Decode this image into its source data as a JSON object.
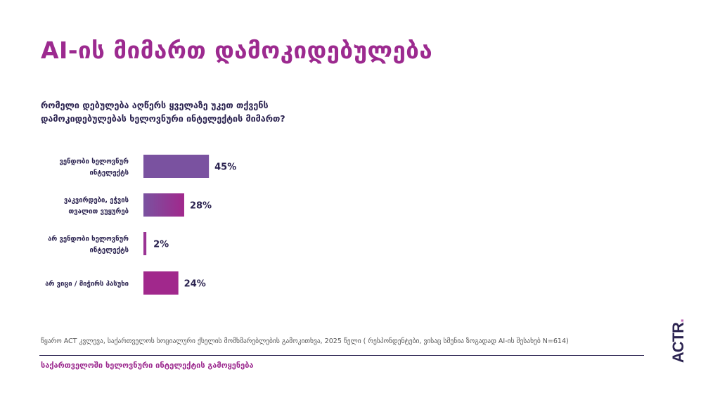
{
  "title": "AI-ის მიმართ დამოკიდებულება",
  "question": "რომელი დებულება აღწერს ყველაზე უკეთ თქვენს დამოკიდებულებას ხელოვნური ინტელექტის მიმართ?",
  "source": "წყარო ACT კვლევა, საქართველოს სოციალური ქსელის მომხმარებლების გამოკითხვა, 2025 წელი ( რესპონდენტები, ვისაც სმენია ზოგადად AI-ის შესახებ N=614)",
  "footer": "საქართველოში ხელოვნური ინტელექტის გამოყენება",
  "logo": {
    "text": "ACTR",
    "dot": "."
  },
  "colors": {
    "title": "#9c2a8f",
    "text": "#2b2350",
    "bar_purple": "#7a52a0",
    "bar_magenta": "#a1288c"
  },
  "chart_data": {
    "type": "bar",
    "orientation": "horizontal",
    "categories": [
      [
        "ვენდობი ხელოვნურ",
        "ინტელექტს"
      ],
      [
        "ვაკვირდები, ეჭვის",
        "თვალით ვუყურებ"
      ],
      [
        "არ ვენდობი ხელოვნურ",
        "ინტელექტს"
      ],
      [
        "არ ვიცი / მიჭირს პასუხი"
      ]
    ],
    "values": [
      45,
      28,
      2,
      24
    ],
    "data_labels": [
      "45%",
      "28%",
      "2%",
      "24%"
    ],
    "unit": "%",
    "xlim": [
      0,
      100
    ],
    "grid": false
  }
}
